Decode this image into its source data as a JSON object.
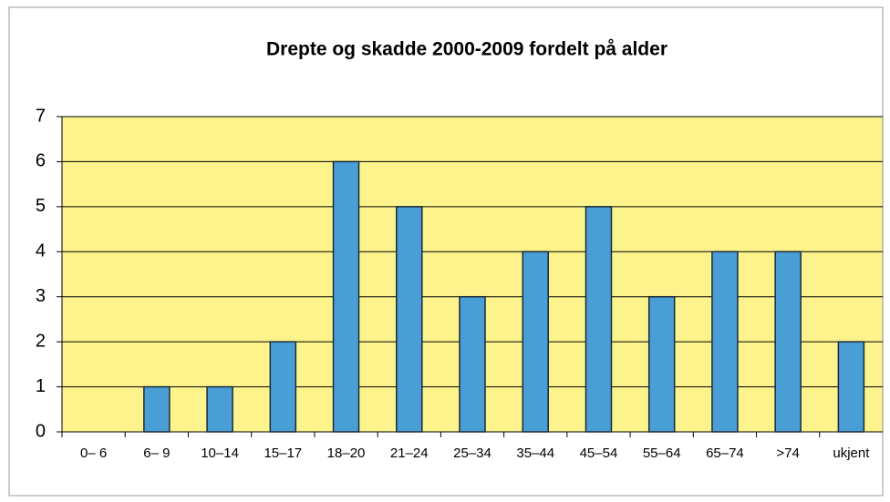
{
  "chart_data": {
    "type": "bar",
    "title": "Drepte og skadde 2000-2009 fordelt på alder",
    "categories": [
      "0– 6",
      "6– 9",
      "10–14",
      "15–17",
      "18–20",
      "21–24",
      "25–34",
      "35–44",
      "45–54",
      "55–64",
      "65–74",
      ">74",
      "ukjent"
    ],
    "values": [
      0,
      1,
      1,
      2,
      6,
      5,
      3,
      4,
      5,
      3,
      4,
      4,
      2
    ],
    "color": "#4a9ed6",
    "ylim": [
      0,
      7
    ],
    "yticks": [
      0,
      1,
      2,
      3,
      4,
      5,
      6,
      7
    ],
    "grid": true
  }
}
